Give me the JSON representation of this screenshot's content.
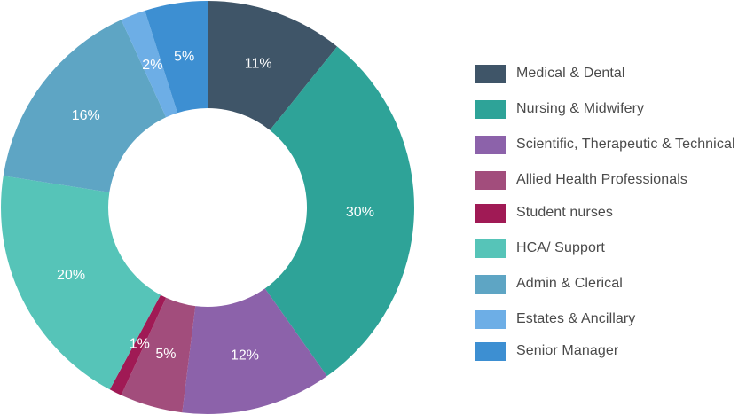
{
  "chart_data": {
    "type": "pie",
    "title": "",
    "legend_position": "right",
    "slices": [
      {
        "label": "Medical & Dental",
        "value": 11,
        "value_label": "11%",
        "color": "#3f5568"
      },
      {
        "label": "Nursing & Midwifery",
        "value": 30,
        "value_label": "30%",
        "color": "#2ea398"
      },
      {
        "label": "Scientific, Therapeutic & Technical",
        "value": 12,
        "value_label": "12%",
        "color": "#8c62aa"
      },
      {
        "label": "Allied Health Professionals",
        "value": 5,
        "value_label": "5%",
        "color": "#a24d7c"
      },
      {
        "label": "Student nurses",
        "value": 1,
        "value_label": "1%",
        "color": "#a01a55"
      },
      {
        "label": "HCA/ Support",
        "value": 20,
        "value_label": "20%",
        "color": "#56c4b8"
      },
      {
        "label": "Admin & Clerical",
        "value": 16,
        "value_label": "16%",
        "color": "#5ea5c4"
      },
      {
        "label": "Estates & Ancillary",
        "value": 2,
        "value_label": "2%",
        "color": "#6daee6"
      },
      {
        "label": "Senior Manager",
        "value": 5,
        "value_label": "5%",
        "color": "#3d8fd2"
      }
    ]
  }
}
